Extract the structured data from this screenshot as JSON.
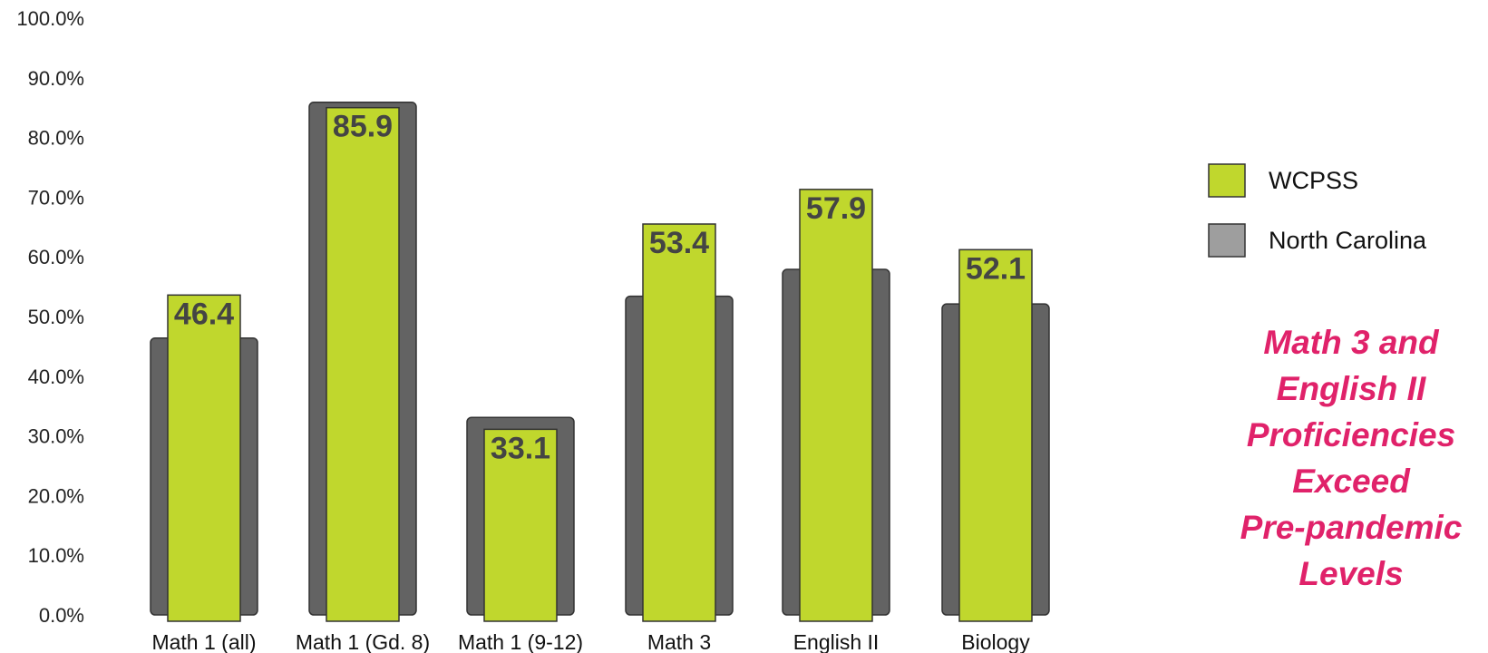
{
  "chart_data": {
    "type": "bar",
    "categories": [
      "Math 1 (all)",
      "Math 1 (Gd. 8)",
      "Math 1 (9-12)",
      "Math 3",
      "English II",
      "Biology"
    ],
    "series": [
      {
        "name": "WCPSS",
        "values": [
          53.6,
          85.0,
          31.1,
          65.5,
          71.3,
          61.2
        ],
        "labels": [
          "46.4",
          "85.9",
          "33.1",
          "53.4",
          "57.9",
          "52.1"
        ],
        "color": "#c0d72d"
      },
      {
        "name": "North Carolina",
        "values": [
          46.4,
          85.9,
          33.1,
          53.4,
          57.9,
          52.1
        ],
        "color": "#636363"
      }
    ],
    "ylim": [
      0,
      100
    ],
    "yticks": [
      "0.0%",
      "10.0%",
      "20.0%",
      "30.0%",
      "40.0%",
      "50.0%",
      "60.0%",
      "70.0%",
      "80.0%",
      "90.0%",
      "100.0%"
    ],
    "ytick_values": [
      0,
      10,
      20,
      30,
      40,
      50,
      60,
      70,
      80,
      90,
      100
    ],
    "legend": {
      "placement": "right",
      "items": [
        {
          "label": "WCPSS",
          "color": "#c0d72d"
        },
        {
          "label": "North Carolina",
          "color": "#9e9e9e"
        }
      ]
    },
    "annotation_lines": [
      "Math 3 and",
      "English II",
      "Proficiencies",
      "Exceed",
      "Pre-pandemic",
      "Levels"
    ],
    "annotation_color": "#e0226a",
    "grid": false
  }
}
